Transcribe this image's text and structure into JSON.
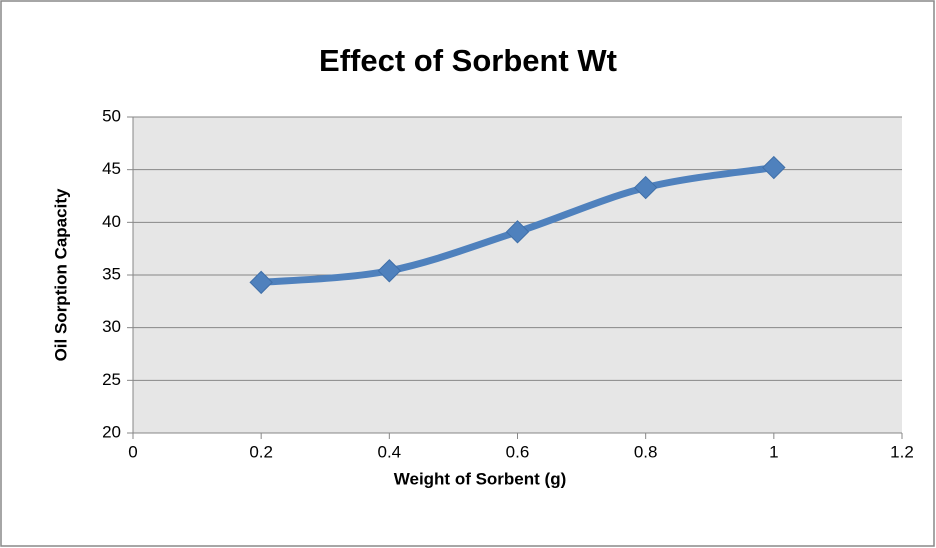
{
  "chart_data": {
    "type": "scatter",
    "title": "Effect of Sorbent Wt",
    "x_label": "Weight of Sorbent (g)",
    "y_label": "Oil Sorption Capacity",
    "x": [
      0.2,
      0.4,
      0.6,
      0.8,
      1
    ],
    "series": [
      {
        "color": "#4f81bd",
        "values": [
          34.3,
          35.4,
          39.1,
          43.3,
          45.2
        ]
      }
    ],
    "smooth": true,
    "marker": "diamond",
    "xlim": [
      0,
      1.2
    ],
    "xticks": [
      0,
      0.2,
      0.4,
      0.6,
      0.8,
      1,
      1.2
    ],
    "ylim": [
      20,
      50
    ],
    "yticks": [
      20,
      25,
      30,
      35,
      40,
      45,
      50
    ],
    "grid": true
  }
}
